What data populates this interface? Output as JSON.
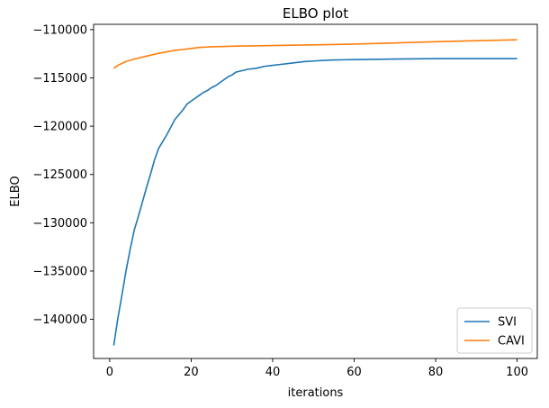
{
  "chart_data": {
    "type": "line",
    "title": "ELBO plot",
    "xlabel": "iterations",
    "ylabel": "ELBO",
    "xlim": [
      -3.95,
      104.95
    ],
    "ylim": [
      -144050,
      -109450
    ],
    "xticks": [
      0,
      20,
      40,
      60,
      80,
      100
    ],
    "yticks": [
      -140000,
      -135000,
      -130000,
      -125000,
      -120000,
      -115000,
      -110000
    ],
    "grid": false,
    "legend_position": "lower-right",
    "series": [
      {
        "name": "SVI",
        "color": "#1f77b4",
        "points": [
          [
            1,
            -142700
          ],
          [
            2,
            -139900
          ],
          [
            3,
            -137500
          ],
          [
            4,
            -135000
          ],
          [
            5,
            -132800
          ],
          [
            6,
            -130800
          ],
          [
            7,
            -129400
          ],
          [
            8,
            -127900
          ],
          [
            9,
            -126400
          ],
          [
            10,
            -125000
          ],
          [
            11,
            -123500
          ],
          [
            12,
            -122300
          ],
          [
            13,
            -121600
          ],
          [
            14,
            -120900
          ],
          [
            15,
            -120100
          ],
          [
            16,
            -119300
          ],
          [
            17,
            -118800
          ],
          [
            18,
            -118300
          ],
          [
            19,
            -117700
          ],
          [
            20,
            -117400
          ],
          [
            21,
            -117100
          ],
          [
            22,
            -116800
          ],
          [
            23,
            -116500
          ],
          [
            24,
            -116300
          ],
          [
            25,
            -116000
          ],
          [
            26,
            -115800
          ],
          [
            27,
            -115500
          ],
          [
            28,
            -115200
          ],
          [
            29,
            -114900
          ],
          [
            30,
            -114700
          ],
          [
            31,
            -114400
          ],
          [
            32,
            -114300
          ],
          [
            34,
            -114100
          ],
          [
            36,
            -114000
          ],
          [
            38,
            -113800
          ],
          [
            40,
            -113700
          ],
          [
            42,
            -113600
          ],
          [
            44,
            -113500
          ],
          [
            46,
            -113400
          ],
          [
            48,
            -113300
          ],
          [
            50,
            -113250
          ],
          [
            54,
            -113150
          ],
          [
            60,
            -113100
          ],
          [
            70,
            -113050
          ],
          [
            80,
            -113000
          ],
          [
            90,
            -113000
          ],
          [
            100,
            -113000
          ]
        ]
      },
      {
        "name": "CAVI",
        "color": "#ff7f0e",
        "points": [
          [
            1,
            -114000
          ],
          [
            2,
            -113700
          ],
          [
            3,
            -113500
          ],
          [
            4,
            -113300
          ],
          [
            6,
            -113050
          ],
          [
            8,
            -112850
          ],
          [
            10,
            -112650
          ],
          [
            12,
            -112450
          ],
          [
            14,
            -112300
          ],
          [
            16,
            -112150
          ],
          [
            18,
            -112050
          ],
          [
            20,
            -111950
          ],
          [
            22,
            -111850
          ],
          [
            25,
            -111780
          ],
          [
            30,
            -111720
          ],
          [
            40,
            -111650
          ],
          [
            50,
            -111580
          ],
          [
            60,
            -111500
          ],
          [
            70,
            -111380
          ],
          [
            80,
            -111250
          ],
          [
            90,
            -111150
          ],
          [
            100,
            -111050
          ]
        ]
      }
    ]
  }
}
